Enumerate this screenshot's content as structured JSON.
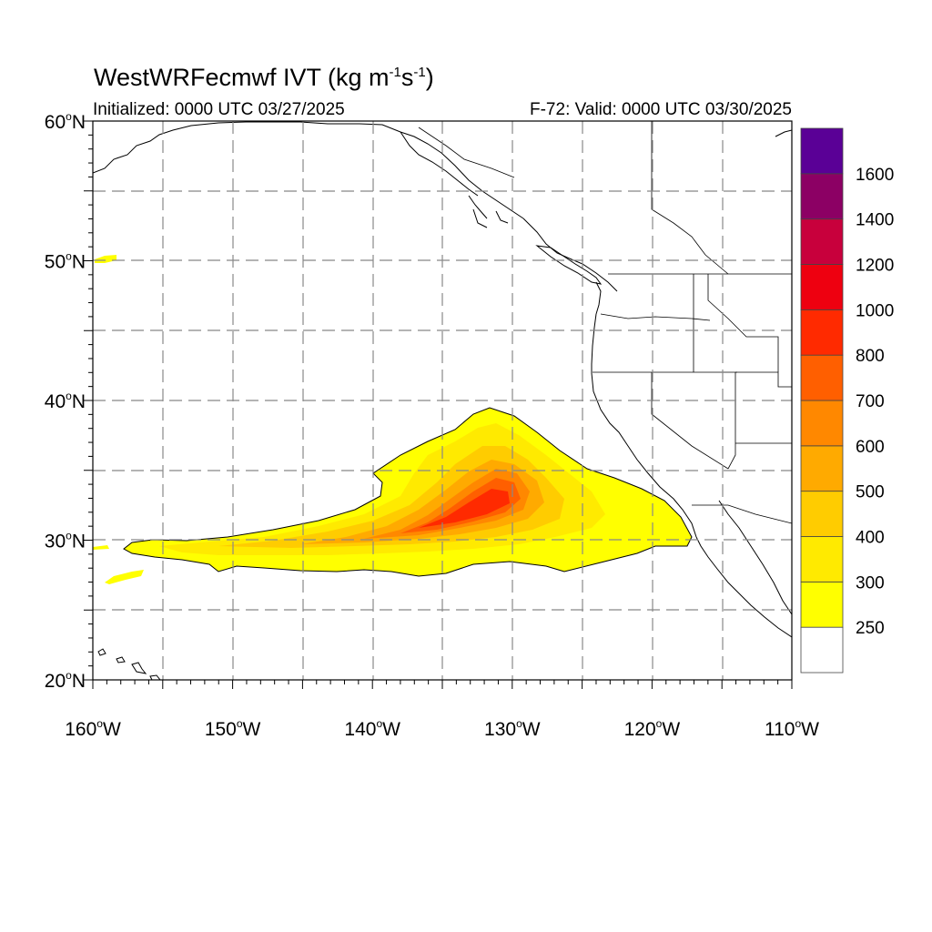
{
  "title": {
    "model": "WestWRFecmwf",
    "variable": "IVT",
    "units_prefix": "(kg m",
    "units_exp1": "-1",
    "units_mid": "s",
    "units_exp2": "-1",
    "units_suffix": ")"
  },
  "initialized": "Initialized: 0000 UTC 03/27/2025",
  "valid": "F-72: Valid: 0000 UTC 03/30/2025",
  "map": {
    "lat_range": [
      20,
      60
    ],
    "lon_range": [
      -160,
      -110
    ],
    "lat_ticks": [
      {
        "value": 20,
        "label": "20",
        "suffix": "N"
      },
      {
        "value": 30,
        "label": "30",
        "suffix": "N"
      },
      {
        "value": 40,
        "label": "40",
        "suffix": "N"
      },
      {
        "value": 50,
        "label": "50",
        "suffix": "N"
      },
      {
        "value": 60,
        "label": "60",
        "suffix": "N"
      }
    ],
    "lon_ticks": [
      {
        "value": -160,
        "label": "160",
        "suffix": "W"
      },
      {
        "value": -150,
        "label": "150",
        "suffix": "W"
      },
      {
        "value": -140,
        "label": "140",
        "suffix": "W"
      },
      {
        "value": -130,
        "label": "130",
        "suffix": "W"
      },
      {
        "value": -120,
        "label": "120",
        "suffix": "W"
      },
      {
        "value": -110,
        "label": "110",
        "suffix": "W"
      }
    ],
    "gridlines": "dashed, every 5 degrees"
  },
  "colorbar": {
    "levels": [
      {
        "label": "250",
        "color": "#ffffff"
      },
      {
        "label": "300",
        "color": "#ffff00"
      },
      {
        "label": "400",
        "color": "#ffea00"
      },
      {
        "label": "500",
        "color": "#ffcc00"
      },
      {
        "label": "600",
        "color": "#ffaa00"
      },
      {
        "label": "700",
        "color": "#ff8800"
      },
      {
        "label": "800",
        "color": "#ff5f00"
      },
      {
        "label": "1000",
        "color": "#ff2a00"
      },
      {
        "label": "1200",
        "color": "#ee0010"
      },
      {
        "label": "1400",
        "color": "#c8003c"
      },
      {
        "label": "1600",
        "color": "#8c0064"
      },
      {
        "label": "",
        "color": "#5a0096"
      }
    ]
  }
}
